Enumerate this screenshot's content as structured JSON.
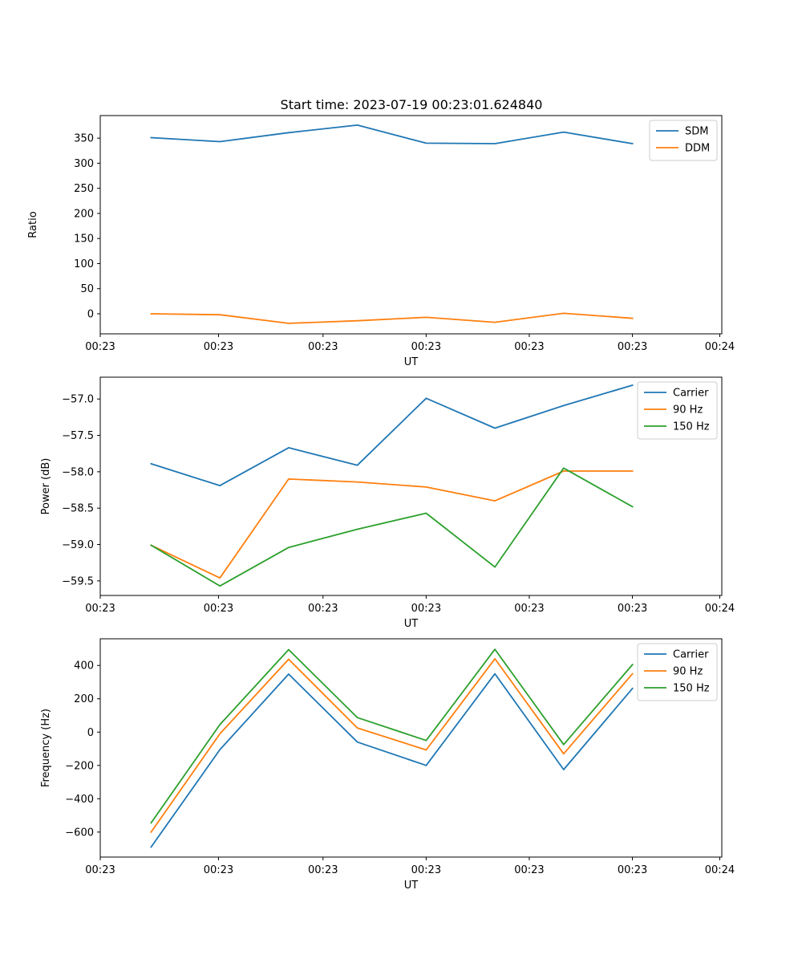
{
  "title": "Start time: 2023-07-19 00:23:01.624840",
  "chart_data": [
    {
      "type": "line",
      "xlabel": "UT",
      "ylabel": "Ratio",
      "x": [
        0,
        1,
        2,
        3,
        4,
        5,
        6,
        7
      ],
      "xlim": [
        -0.74,
        8.3
      ],
      "xticks": [
        -0.74,
        0.98,
        2.5,
        4.0,
        5.5,
        7.0,
        8.27
      ],
      "xticklabels": [
        "00:23",
        "00:23",
        "00:23",
        "00:23",
        "00:23",
        "00:23",
        "00:24"
      ],
      "ylim": [
        -40,
        395
      ],
      "yticks": [
        0,
        50,
        100,
        150,
        200,
        250,
        300,
        350
      ],
      "yticklabels": [
        "0",
        "50",
        "100",
        "150",
        "200",
        "250",
        "300",
        "350"
      ],
      "legend_position": "upper-right",
      "series": [
        {
          "name": "SDM",
          "color": "#1f77b4",
          "values": [
            351,
            343,
            361,
            376,
            340,
            339,
            362,
            339
          ]
        },
        {
          "name": "DDM",
          "color": "#ff7f0e",
          "values": [
            0,
            -2,
            -19,
            -14,
            -7,
            -17,
            1,
            -9
          ]
        }
      ]
    },
    {
      "type": "line",
      "xlabel": "UT",
      "ylabel": "Power (dB)",
      "x": [
        0,
        1,
        2,
        3,
        4,
        5,
        6,
        7
      ],
      "xlim": [
        -0.74,
        8.3
      ],
      "xticks": [
        -0.74,
        0.98,
        2.5,
        4.0,
        5.5,
        7.0,
        8.27
      ],
      "xticklabels": [
        "00:23",
        "00:23",
        "00:23",
        "00:23",
        "00:23",
        "00:23",
        "00:24"
      ],
      "ylim": [
        -59.7,
        -56.7
      ],
      "yticks": [
        -59.5,
        -59.0,
        -58.5,
        -58.0,
        -57.5,
        -57.0
      ],
      "yticklabels": [
        "−59.5",
        "−59.0",
        "−58.5",
        "−58.0",
        "−57.5",
        "−57.0"
      ],
      "legend_position": "upper-right",
      "series": [
        {
          "name": "Carrier",
          "color": "#1f77b4",
          "values": [
            -57.89,
            -58.19,
            -57.67,
            -57.91,
            -56.99,
            -57.4,
            -57.09,
            -56.81
          ]
        },
        {
          "name": "90 Hz",
          "color": "#ff7f0e",
          "values": [
            -59.01,
            -59.46,
            -58.1,
            -58.14,
            -58.21,
            -58.4,
            -57.99,
            -57.99
          ]
        },
        {
          "name": "150 Hz",
          "color": "#2ca02c",
          "values": [
            -59.01,
            -59.57,
            -59.04,
            -58.79,
            -58.57,
            -59.31,
            -57.95,
            -58.48
          ]
        }
      ]
    },
    {
      "type": "line",
      "xlabel": "UT",
      "ylabel": "Frequency (Hz)",
      "x": [
        0,
        1,
        2,
        3,
        4,
        5,
        6,
        7
      ],
      "xlim": [
        -0.74,
        8.3
      ],
      "xticks": [
        -0.74,
        0.98,
        2.5,
        4.0,
        5.5,
        7.0,
        8.27
      ],
      "xticklabels": [
        "00:23",
        "00:23",
        "00:23",
        "00:23",
        "00:23",
        "00:23",
        "00:24"
      ],
      "ylim": [
        -750,
        560
      ],
      "yticks": [
        -600,
        -400,
        -200,
        0,
        200,
        400
      ],
      "yticklabels": [
        "−600",
        "−400",
        "−200",
        "0",
        "200",
        "400"
      ],
      "legend_position": "upper-right",
      "series": [
        {
          "name": "Carrier",
          "color": "#1f77b4",
          "values": [
            -690,
            -105,
            348,
            -60,
            -200,
            350,
            -225,
            262
          ]
        },
        {
          "name": "90 Hz",
          "color": "#ff7f0e",
          "values": [
            -600,
            -10,
            437,
            25,
            -107,
            440,
            -130,
            350
          ]
        },
        {
          "name": "150 Hz",
          "color": "#2ca02c",
          "values": [
            -545,
            45,
            495,
            87,
            -50,
            497,
            -75,
            405
          ]
        }
      ]
    }
  ]
}
